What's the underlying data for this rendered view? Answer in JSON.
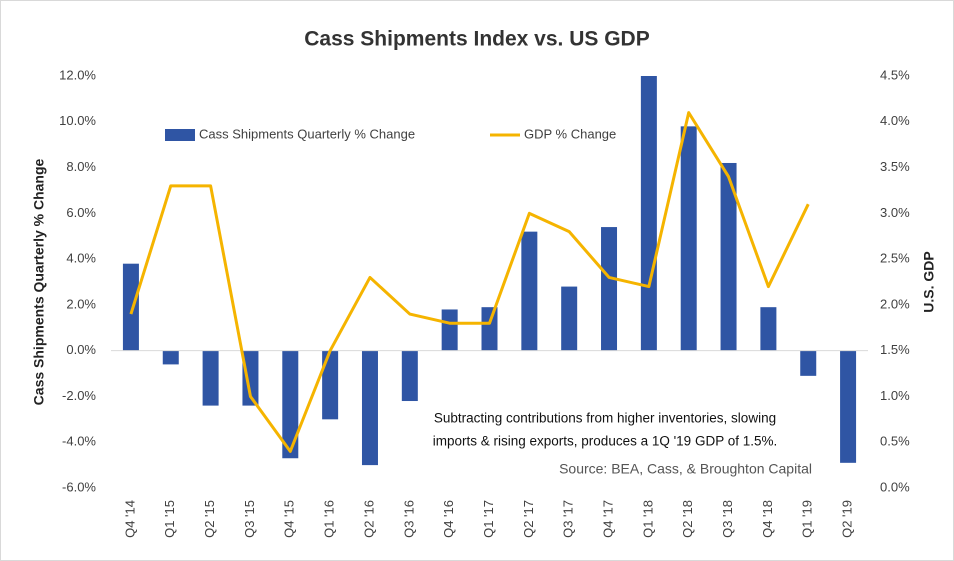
{
  "chart_data": {
    "type": "bar_line",
    "title": "Cass Shipments Index vs. US GDP",
    "y_label": "Cass Shipments Quarterly % Change",
    "y2_label": "U.S. GDP",
    "categories": [
      "Q4 '14",
      "Q1 '15",
      "Q2 '15",
      "Q3 '15",
      "Q4 '15",
      "Q1 '16",
      "Q2 '16",
      "Q3 '16",
      "Q4 '16",
      "Q1 '17",
      "Q2 '17",
      "Q3 '17",
      "Q4 '17",
      "Q1 '18",
      "Q2 '18",
      "Q3 '18",
      "Q4 '18",
      "Q1 '19",
      "Q2 '19"
    ],
    "series": [
      {
        "name": "Cass Shipments Quarterly % Change",
        "type": "bar",
        "color": "#2f55a4",
        "values": [
          3.8,
          -0.6,
          -2.4,
          -2.4,
          -4.7,
          -3.0,
          -5.0,
          -2.2,
          1.8,
          1.9,
          5.2,
          2.8,
          5.4,
          12.0,
          9.8,
          8.2,
          1.9,
          -1.1,
          -4.9
        ]
      },
      {
        "name": "GDP % Change",
        "type": "line",
        "color": "#f5b400",
        "axis": "y2",
        "values": [
          1.9,
          3.3,
          3.3,
          1.0,
          0.4,
          1.5,
          2.3,
          1.9,
          1.8,
          1.8,
          3.0,
          2.8,
          2.3,
          2.2,
          4.1,
          3.4,
          2.2,
          3.1,
          null
        ]
      }
    ],
    "ylim": [
      -6,
      12
    ],
    "yticks": [
      {
        "value": -6,
        "label": "-6.0%"
      },
      {
        "value": -4,
        "label": "-4.0%"
      },
      {
        "value": -2,
        "label": "-2.0%"
      },
      {
        "value": 0,
        "label": "0.0%"
      },
      {
        "value": 2,
        "label": "2.0%"
      },
      {
        "value": 4,
        "label": "4.0%"
      },
      {
        "value": 6,
        "label": "6.0%"
      },
      {
        "value": 8,
        "label": "8.0%"
      },
      {
        "value": 10,
        "label": "10.0%"
      },
      {
        "value": 12,
        "label": "12.0%"
      }
    ],
    "y2lim": [
      0,
      4.5
    ],
    "y2ticks": [
      {
        "value": 0,
        "label": "0.0%"
      },
      {
        "value": 0.5,
        "label": "0.5%"
      },
      {
        "value": 1,
        "label": "1.0%"
      },
      {
        "value": 1.5,
        "label": "1.5%"
      },
      {
        "value": 2,
        "label": "2.0%"
      },
      {
        "value": 2.5,
        "label": "2.5%"
      },
      {
        "value": 3,
        "label": "3.0%"
      },
      {
        "value": 3.5,
        "label": "3.5%"
      },
      {
        "value": 4,
        "label": "4.0%"
      },
      {
        "value": 4.5,
        "label": "4.5%"
      }
    ],
    "grid": false,
    "legend": "top",
    "annotations": [
      "Subtracting contributions from higher inventories, slowing",
      "imports & rising exports, produces a 1Q '19 GDP of 1.5%."
    ],
    "source": "Source: BEA, Cass, & Broughton Capital"
  }
}
